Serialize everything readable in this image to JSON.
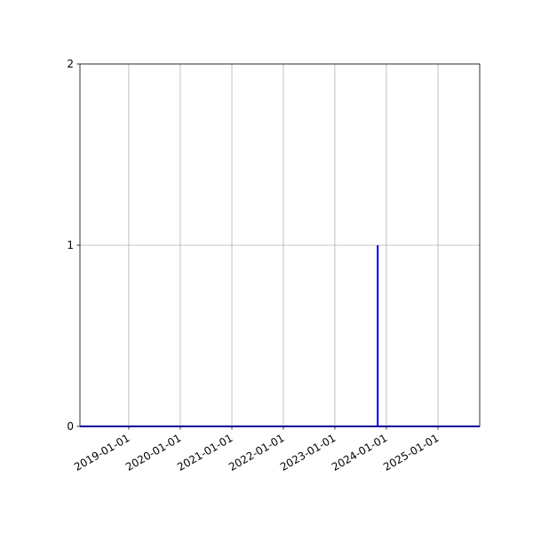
{
  "chart_data": {
    "type": "line",
    "title": "",
    "xlabel": "",
    "ylabel": "",
    "x_type": "date",
    "xlim": [
      "2018-01-20",
      "2025-10-24"
    ],
    "ylim": [
      0,
      2
    ],
    "x_ticks": [
      "2019-01-01",
      "2020-01-01",
      "2021-01-01",
      "2022-01-01",
      "2023-01-01",
      "2024-01-01",
      "2025-01-01"
    ],
    "y_ticks": [
      "0",
      "1",
      "2"
    ],
    "grid": true,
    "series": [
      {
        "color": "#0000ff",
        "x": [
          "2018-01-20",
          "2023-11-01",
          "2023-11-01",
          "2023-11-01",
          "2025-10-24"
        ],
        "y": [
          0,
          0,
          1,
          0,
          0
        ]
      }
    ]
  }
}
